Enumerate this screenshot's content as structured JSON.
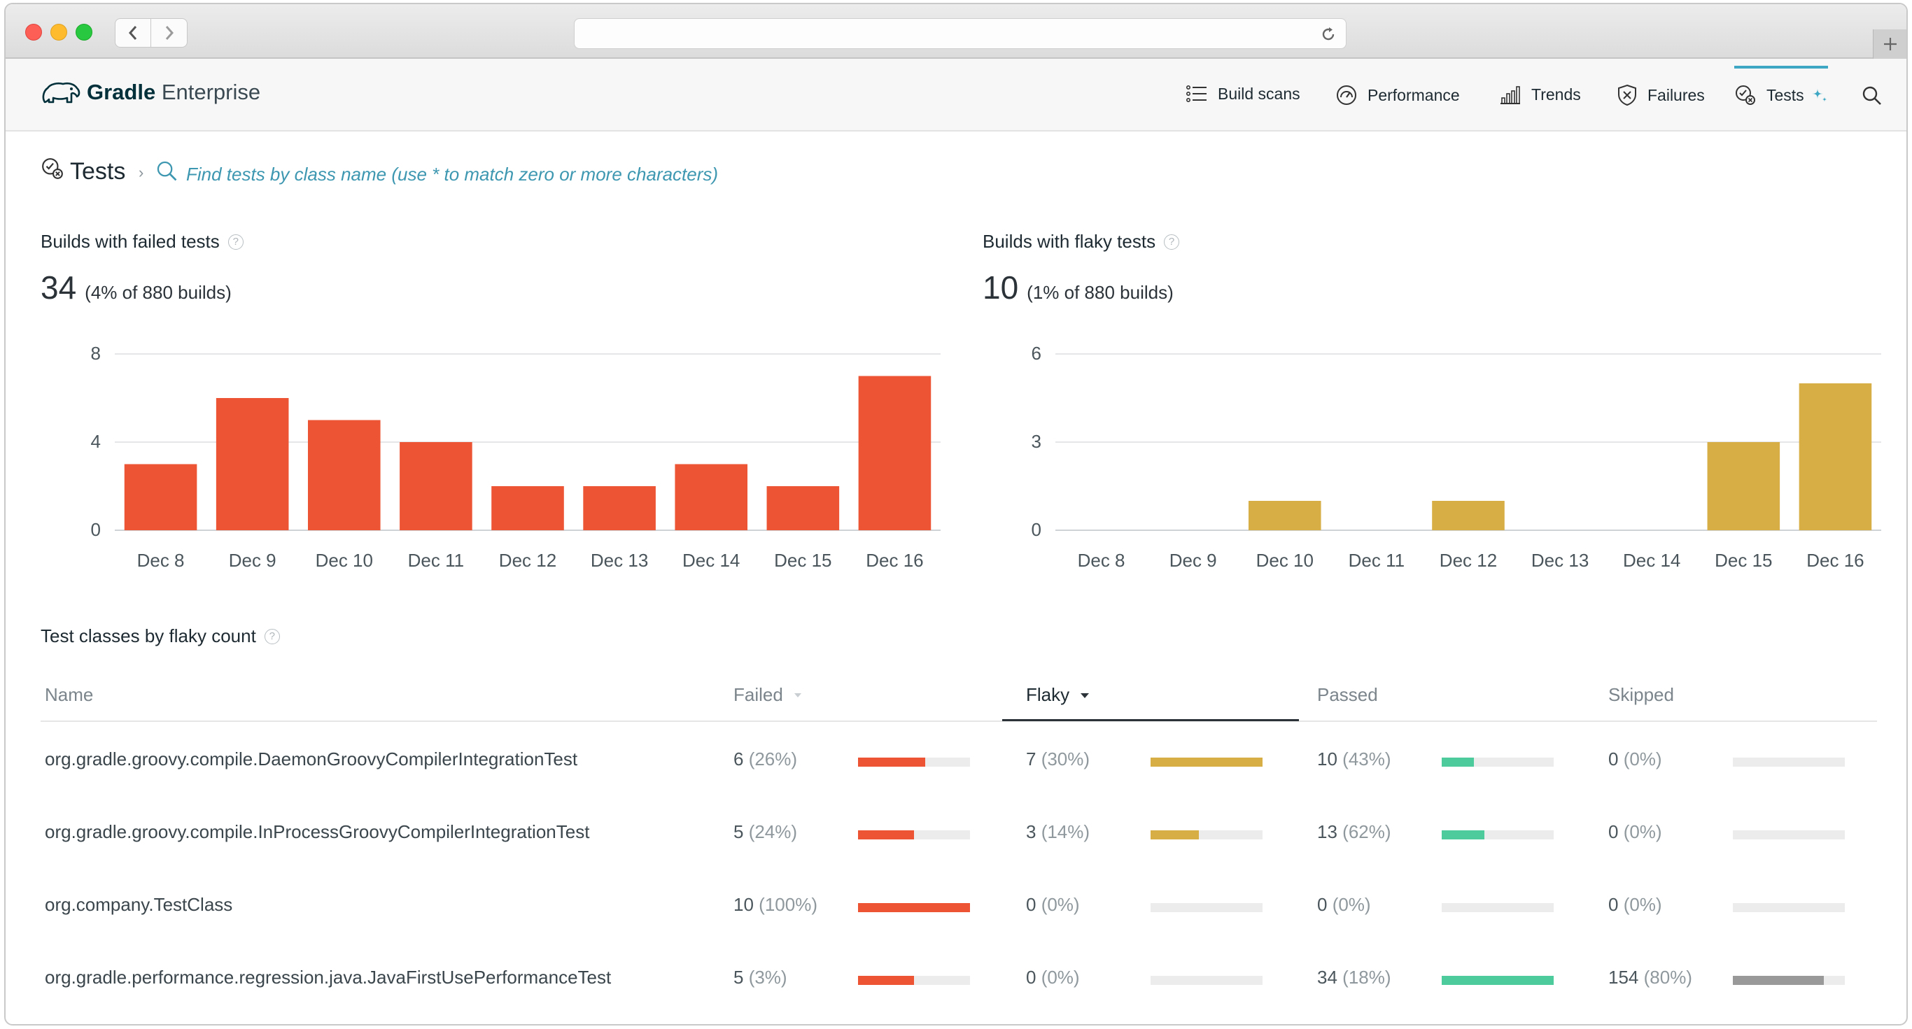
{
  "app": {
    "logo_bold": "Gradle",
    "logo_light": " Enterprise",
    "nav": [
      {
        "label": "Build scans",
        "icon": "list-icon"
      },
      {
        "label": "Performance",
        "icon": "gauge-icon"
      },
      {
        "label": "Trends",
        "icon": "bar-chart-icon"
      },
      {
        "label": "Failures",
        "icon": "shield-x-icon"
      },
      {
        "label": "Tests",
        "icon": "tests-icon",
        "active": true
      }
    ],
    "accent_color": "#3ea8c4"
  },
  "breadcrumb": {
    "title": "Tests",
    "separator": "›",
    "search_placeholder": "Find tests by class name (use * to match zero or more characters)"
  },
  "failed": {
    "title": "Builds with failed tests",
    "value": "34",
    "detail": "(4% of 880 builds)",
    "help": "?"
  },
  "flaky": {
    "title": "Builds with flaky tests",
    "value": "10",
    "detail": "(1% of 880 builds)",
    "help": "?"
  },
  "chart_data": [
    {
      "type": "bar",
      "categories": [
        "Dec 8",
        "Dec 9",
        "Dec 10",
        "Dec 11",
        "Dec 12",
        "Dec 13",
        "Dec 14",
        "Dec 15",
        "Dec 16"
      ],
      "values": [
        3,
        6,
        5,
        4,
        2,
        2,
        3,
        2,
        7
      ],
      "yticks": [
        0,
        4,
        8
      ],
      "ylim": [
        0,
        8
      ],
      "color": "#ec5434",
      "grid": true
    },
    {
      "type": "bar",
      "categories": [
        "Dec 8",
        "Dec 9",
        "Dec 10",
        "Dec 11",
        "Dec 12",
        "Dec 13",
        "Dec 14",
        "Dec 15",
        "Dec 16"
      ],
      "values": [
        0,
        0,
        1,
        0,
        1,
        0,
        0,
        3,
        5
      ],
      "yticks": [
        0,
        3,
        6
      ],
      "ylim": [
        0,
        6
      ],
      "color": "#d7ae45",
      "grid": true
    }
  ],
  "table": {
    "title": "Test classes by flaky count",
    "help": "?",
    "columns": {
      "name": "Name",
      "failed": "Failed",
      "flaky": "Flaky",
      "passed": "Passed",
      "skipped": "Skipped"
    },
    "colors": {
      "failed": "#ec5434",
      "flaky": "#d7ae45",
      "passed": "#4ecb9c",
      "skipped": "#999999"
    },
    "rows": [
      {
        "name": "org.gradle.groovy.compile.DaemonGroovyCompilerIntegrationTest",
        "failed": {
          "count": "6",
          "pct": "(26%)",
          "frac": 0.6
        },
        "flaky": {
          "count": "7",
          "pct": "(30%)",
          "frac": 1.0
        },
        "passed": {
          "count": "10",
          "pct": "(43%)",
          "frac": 0.29
        },
        "skipped": {
          "count": "0",
          "pct": "(0%)",
          "frac": 0
        }
      },
      {
        "name": "org.gradle.groovy.compile.InProcessGroovyCompilerIntegrationTest",
        "failed": {
          "count": "5",
          "pct": "(24%)",
          "frac": 0.5
        },
        "flaky": {
          "count": "3",
          "pct": "(14%)",
          "frac": 0.43
        },
        "passed": {
          "count": "13",
          "pct": "(62%)",
          "frac": 0.38
        },
        "skipped": {
          "count": "0",
          "pct": "(0%)",
          "frac": 0
        }
      },
      {
        "name": "org.company.TestClass",
        "failed": {
          "count": "10",
          "pct": "(100%)",
          "frac": 1.0
        },
        "flaky": {
          "count": "0",
          "pct": "(0%)",
          "frac": 0
        },
        "passed": {
          "count": "0",
          "pct": "(0%)",
          "frac": 0
        },
        "skipped": {
          "count": "0",
          "pct": "(0%)",
          "frac": 0
        }
      },
      {
        "name": "org.gradle.performance.regression.java.JavaFirstUsePerformanceTest",
        "failed": {
          "count": "5",
          "pct": "(3%)",
          "frac": 0.5
        },
        "flaky": {
          "count": "0",
          "pct": "(0%)",
          "frac": 0
        },
        "passed": {
          "count": "34",
          "pct": "(18%)",
          "frac": 1.0
        },
        "skipped": {
          "count": "154",
          "pct": "(80%)",
          "frac": 0.81
        }
      }
    ]
  }
}
